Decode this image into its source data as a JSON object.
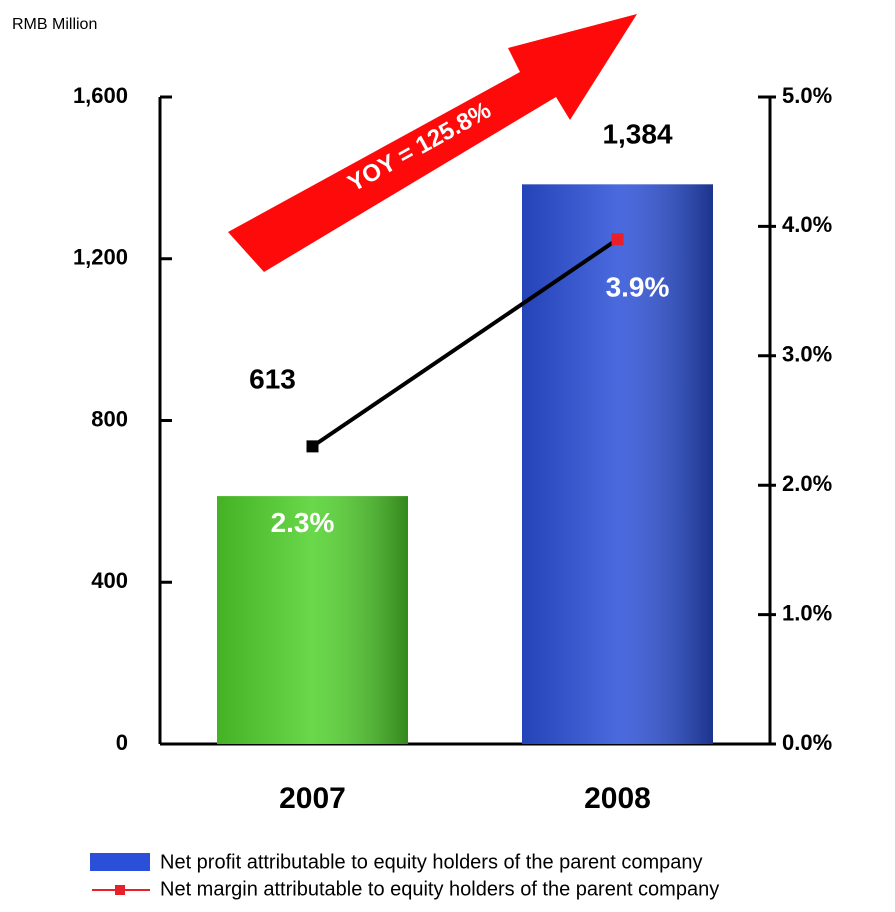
{
  "chart_data": {
    "type": "bar_line",
    "unit_label": "RMB Million",
    "annotation": "YOY = 125.8%",
    "categories": [
      "2007",
      "2008"
    ],
    "series": [
      {
        "name": "Net profit attributable to equity holders of the parent company",
        "color": "#2a4fd8",
        "bar_colors": [
          "#4fd12a",
          "#2a4fd8"
        ],
        "values": [
          613,
          1384
        ],
        "value_labels": [
          "613",
          "1,384"
        ]
      },
      {
        "name": "Net margin attributable to equity holders of the parent company",
        "color": "#e8202a",
        "line_color": "#000000",
        "axis": "y2",
        "values": [
          2.3,
          3.9
        ],
        "value_labels": [
          "2.3%",
          "3.9%"
        ]
      }
    ],
    "ylim": [
      0,
      1600
    ],
    "yticks": [
      0,
      400,
      800,
      {
        "value": 1200,
        "label": "1,200"
      },
      {
        "value": 1600,
        "label": "1,600"
      }
    ],
    "y2lim": [
      0,
      5
    ],
    "y2ticks": [
      {
        "value": 0,
        "label": "0.0%"
      },
      {
        "value": 1,
        "label": "1.0%"
      },
      {
        "value": 2,
        "label": "2.0%"
      },
      {
        "value": 3,
        "label": "3.0%"
      },
      {
        "value": 4,
        "label": "4.0%"
      },
      {
        "value": 5,
        "label": "5.0%"
      }
    ]
  }
}
